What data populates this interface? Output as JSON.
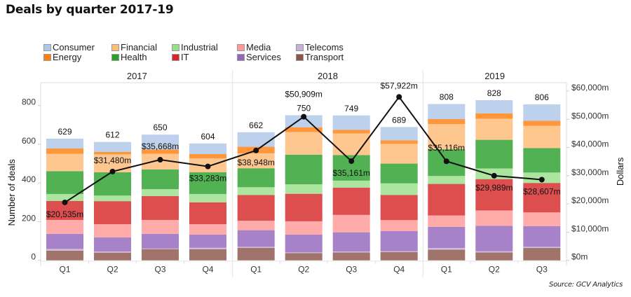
{
  "title": "Deals by quarter 2017-19",
  "source": "Source: GCV Analytics",
  "chart_data": {
    "type": "bar",
    "subtype": "stacked-bar-with-line-dual-axis",
    "title": "Deals by quarter 2017-19",
    "ylabel": "Number of deals",
    "y2label": "Dollars",
    "ylim": [
      0,
      920
    ],
    "y2lim": [
      0,
      63000
    ],
    "yticks": [
      0,
      200,
      400,
      600,
      800
    ],
    "y2ticks": [
      0,
      10000,
      20000,
      30000,
      40000,
      50000,
      60000
    ],
    "y2tick_labels": [
      "$0m",
      "$10,000m",
      "$20,000m",
      "$30,000m",
      "$40,000m",
      "$50,000m",
      "$60,000m"
    ],
    "grid": false,
    "legend_position": "top-left",
    "years": [
      "2017",
      "2018",
      "2019"
    ],
    "categories": [
      {
        "year": "2017",
        "quarter": "Q1"
      },
      {
        "year": "2017",
        "quarter": "Q2"
      },
      {
        "year": "2017",
        "quarter": "Q3"
      },
      {
        "year": "2017",
        "quarter": "Q4"
      },
      {
        "year": "2018",
        "quarter": "Q1"
      },
      {
        "year": "2018",
        "quarter": "Q2"
      },
      {
        "year": "2018",
        "quarter": "Q3"
      },
      {
        "year": "2018",
        "quarter": "Q4"
      },
      {
        "year": "2019",
        "quarter": "Q1"
      },
      {
        "year": "2019",
        "quarter": "Q2"
      },
      {
        "year": "2019",
        "quarter": "Q3"
      }
    ],
    "series": [
      {
        "name": "Transport",
        "color": "#8c564b",
        "values": [
          50,
          40,
          58,
          58,
          65,
          37,
          41,
          43,
          55,
          41,
          64
        ]
      },
      {
        "name": "Telecoms",
        "color": "#c5b0d5",
        "values": [
          9,
          6,
          3,
          7,
          5,
          4,
          5,
          4,
          9,
          6,
          6
        ]
      },
      {
        "name": "Services",
        "color": "#9467bd",
        "values": [
          78,
          73,
          76,
          68,
          86,
          92,
          99,
          104,
          109,
          131,
          107
        ]
      },
      {
        "name": "Media",
        "color": "#ff9896",
        "values": [
          72,
          68,
          72,
          54,
          49,
          69,
          90,
          57,
          59,
          80,
          71
        ]
      },
      {
        "name": "IT",
        "color": "#d62728",
        "values": [
          98,
          119,
          123,
          113,
          133,
          142,
          141,
          130,
          163,
          162,
          152
        ]
      },
      {
        "name": "Industrial",
        "color": "#98df8a",
        "values": [
          36,
          29,
          36,
          43,
          40,
          49,
          36,
          60,
          41,
          55,
          54
        ]
      },
      {
        "name": "Health",
        "color": "#2ca02c",
        "values": [
          118,
          120,
          102,
          112,
          98,
          153,
          132,
          102,
          138,
          148,
          126
        ]
      },
      {
        "name": "Financial",
        "color": "#ffbb78",
        "values": [
          90,
          93,
          81,
          72,
          77,
          117,
          112,
          102,
          130,
          109,
          115
        ]
      },
      {
        "name": "Energy",
        "color": "#ff7f0e",
        "values": [
          27,
          12,
          22,
          22,
          34,
          25,
          18,
          18,
          26,
          28,
          26
        ]
      },
      {
        "name": "Consumer",
        "color": "#aec7e8",
        "values": [
          51,
          52,
          77,
          55,
          75,
          62,
          75,
          69,
          78,
          68,
          85
        ]
      }
    ],
    "totals": [
      629,
      612,
      650,
      604,
      662,
      750,
      749,
      689,
      808,
      828,
      806
    ],
    "line": {
      "name": "Dollars",
      "color": "#111111",
      "values": [
        20535,
        31480,
        35668,
        33283,
        38948,
        50909,
        35161,
        57922,
        35116,
        29989,
        28607
      ],
      "labels": [
        "$20,535m",
        "$31,480m",
        "$35,668m",
        "$33,283m",
        "$38,948m",
        "$50,909m",
        "$35,161m",
        "$57,922m",
        "$35,116m",
        "$29,989m",
        "$28,607m"
      ]
    },
    "legend_order": [
      [
        "Consumer",
        "Energy"
      ],
      [
        "Financial",
        "Health"
      ],
      [
        "Industrial",
        "IT"
      ],
      [
        "Media",
        "Services"
      ],
      [
        "Telecoms",
        "Transport"
      ]
    ]
  }
}
